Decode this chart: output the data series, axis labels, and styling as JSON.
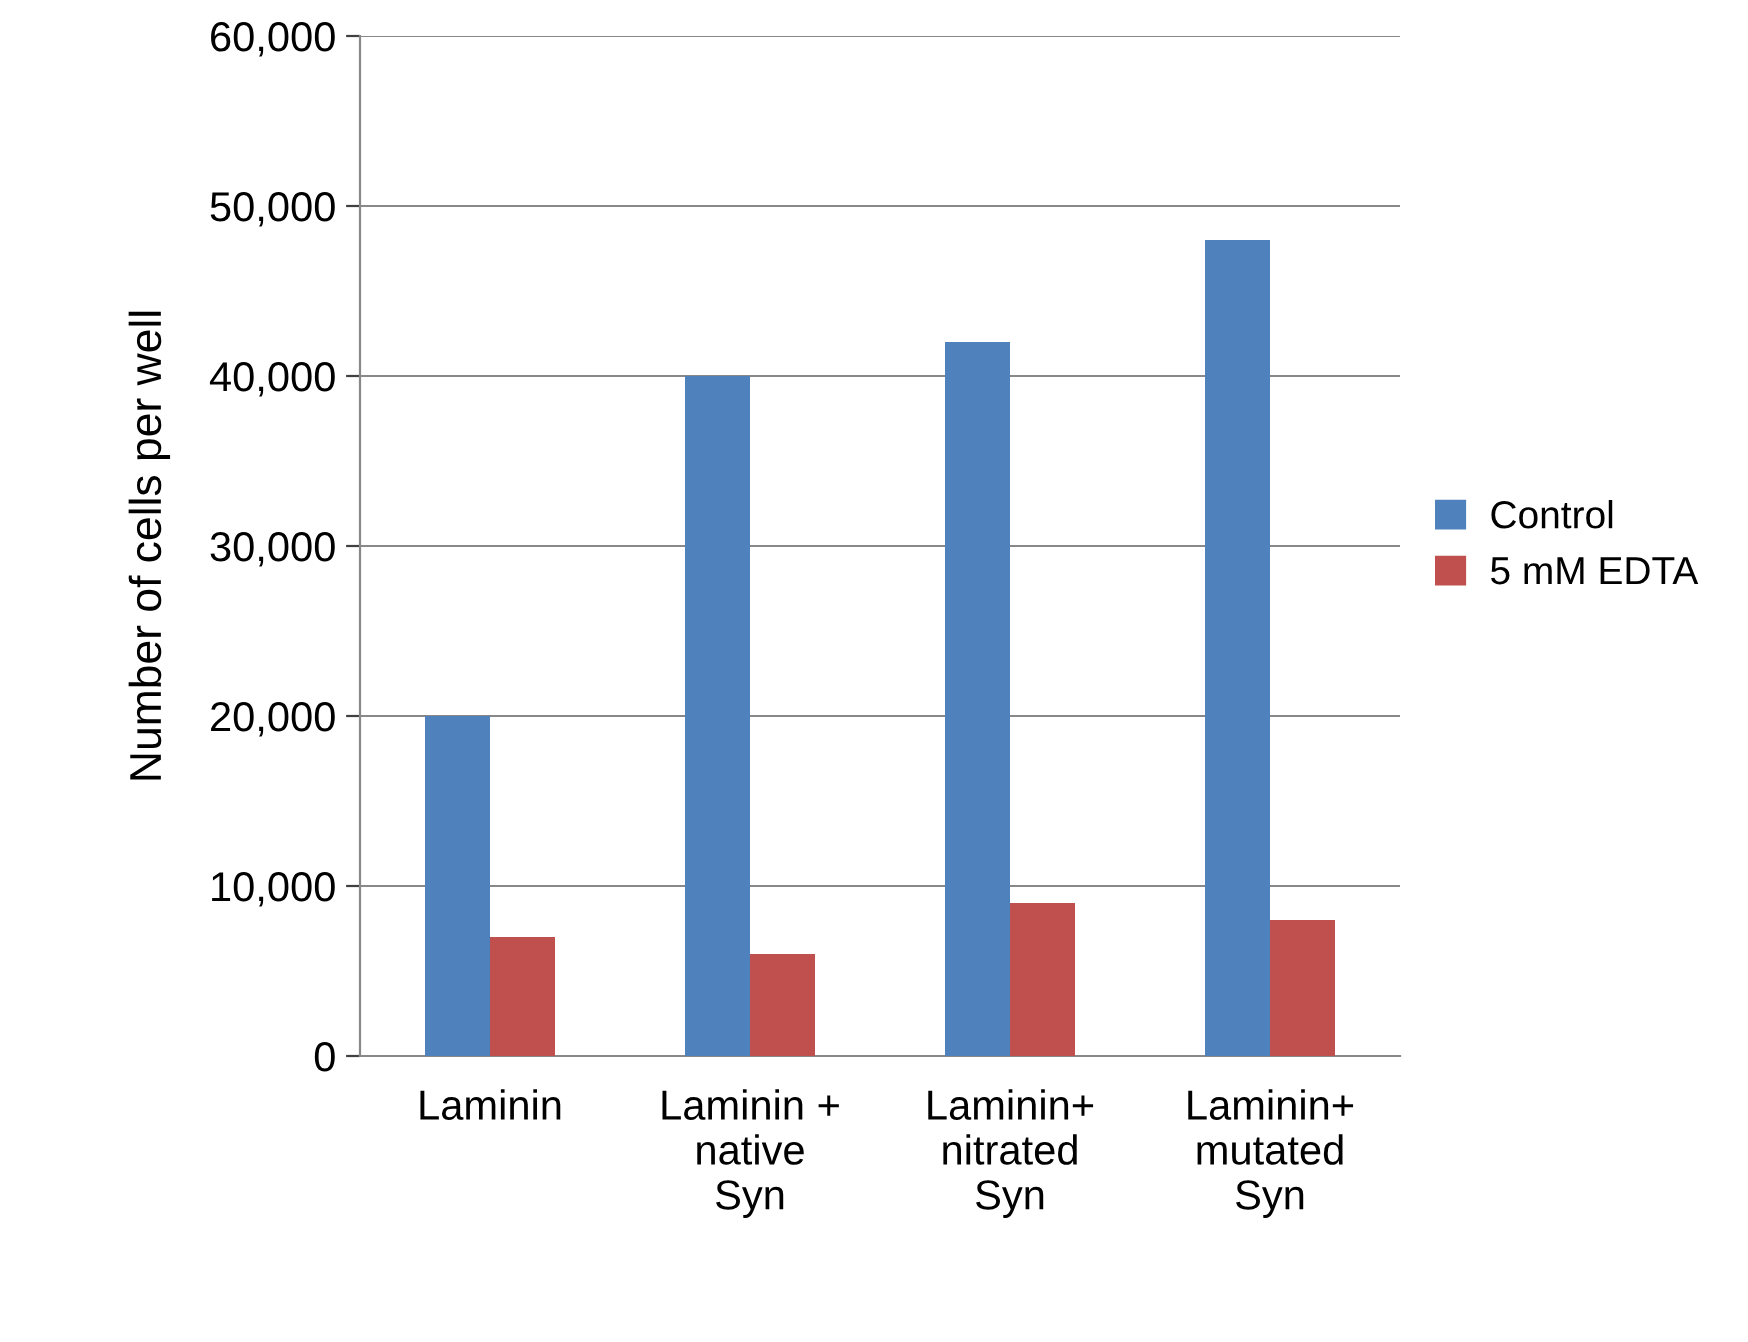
{
  "chart_data": {
    "type": "bar",
    "ylabel": "Number of cells per well",
    "categories": [
      "Laminin",
      "Laminin +\nnative\nSyn",
      "Laminin+\nnitrated\nSyn",
      "Laminin+\nmutated\nSyn"
    ],
    "series": [
      {
        "name": "Control",
        "color": "#4f81bd",
        "values": [
          20000,
          40000,
          42000,
          48000
        ]
      },
      {
        "name": "5 mM EDTA",
        "color": "#c0504d",
        "values": [
          7000,
          6000,
          9000,
          8000
        ]
      }
    ],
    "ylim": [
      0,
      60000
    ],
    "yticks": [
      {
        "value": 0,
        "label": "0"
      },
      {
        "value": 10000,
        "label": "10,000"
      },
      {
        "value": 20000,
        "label": "20,000"
      },
      {
        "value": 30000,
        "label": "30,000"
      },
      {
        "value": 40000,
        "label": "40,000"
      },
      {
        "value": 50000,
        "label": "50,000"
      },
      {
        "value": 60000,
        "label": "60,000"
      }
    ],
    "grid": "y",
    "legend": "right"
  }
}
